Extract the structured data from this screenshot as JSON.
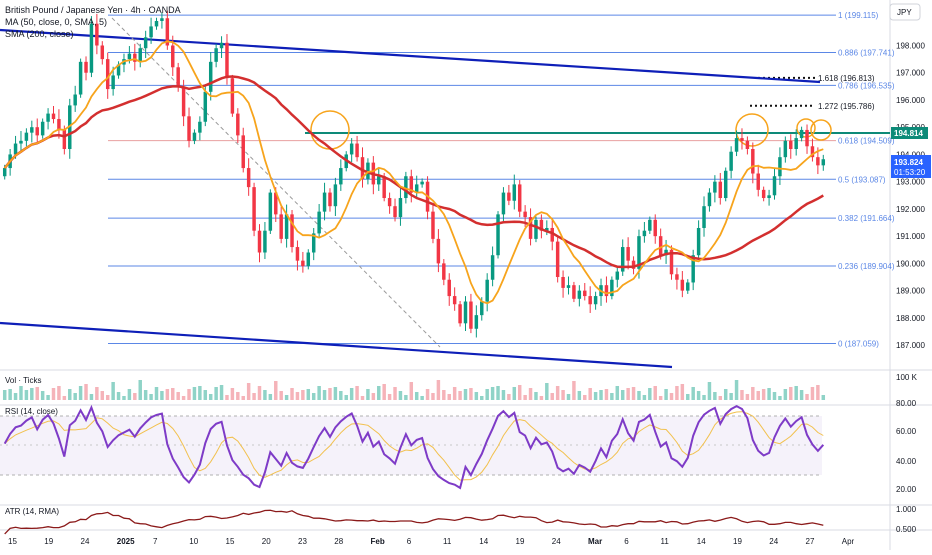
{
  "header": {
    "symbol": "British Pound / Japanese Yen · 4h · OANDA",
    "ma_label": "MA (50, close, 0, SMA, 5)",
    "sma_label": "SMA (200, close)",
    "currency": "JPY"
  },
  "price_badge": {
    "value": "193.824",
    "countdown": "01:53:20"
  },
  "level_badge": "194.814",
  "colors": {
    "up": "#089981",
    "down": "#f23645",
    "ma50": "#f7a41c",
    "sma200": "#d32f2f",
    "channel": "#0e1fb8",
    "fib": "#5b87e6",
    "resistance": "#0d8a78",
    "rsi": "#7e3bc7",
    "badge_blue": "#2962ff",
    "badge_teal": "#0d8a78"
  },
  "panes": {
    "volume": {
      "label": "Vol · Ticks",
      "scale": "100 K"
    },
    "rsi": {
      "label": "RSI (14, close)",
      "ticks": [
        "80.00",
        "60.00",
        "40.00",
        "20.00"
      ]
    },
    "atr": {
      "label": "ATR (14, RMA)",
      "ticks": [
        "1.000",
        "0.500"
      ]
    }
  },
  "chart_data": {
    "type": "candlestick",
    "price_axis": {
      "ylim": [
        186.6,
        199.45
      ],
      "ticks": [
        "198.000",
        "197.000",
        "196.000",
        "195.000",
        "194.000",
        "193.000",
        "192.000",
        "191.000",
        "190.000",
        "189.000",
        "188.000",
        "187.000"
      ]
    },
    "x_ticks": [
      "15",
      "19",
      "24",
      "2025",
      "7",
      "10",
      "15",
      "20",
      "23",
      "28",
      "Feb",
      "6",
      "11",
      "14",
      "19",
      "24",
      "Mar",
      "6",
      "11",
      "14",
      "19",
      "24",
      "27",
      "Apr"
    ],
    "fib_retracement": [
      {
        "ratio": "1",
        "price": 199.115,
        "label": "1 (199.115)"
      },
      {
        "ratio": "0.886",
        "price": 197.741,
        "label": "0.886 (197.741)"
      },
      {
        "ratio": "0.786",
        "price": 196.535,
        "label": "0.786 (196.535)"
      },
      {
        "ratio": "0.618",
        "price": 194.509,
        "label": "0.618 (194.509)"
      },
      {
        "ratio": "0.5",
        "price": 193.087,
        "label": "0.5 (193.087)"
      },
      {
        "ratio": "0.382",
        "price": 191.664,
        "label": "0.382 (191.664)"
      },
      {
        "ratio": "0.236",
        "price": 189.904,
        "label": "0.236 (189.904)"
      },
      {
        "ratio": "0",
        "price": 187.059,
        "label": "0 (187.059)"
      }
    ],
    "fib_extensions": [
      {
        "price": 196.813,
        "label": "1.618 (196.813)"
      },
      {
        "price": 195.786,
        "label": "1.272 (195.786)"
      }
    ],
    "resistance": 194.814,
    "closes": [
      193.5,
      194.0,
      194.4,
      194.5,
      194.8,
      195.0,
      194.7,
      195.2,
      195.5,
      195.3,
      194.9,
      194.2,
      195.8,
      196.2,
      197.4,
      197.0,
      198.8,
      198.0,
      197.5,
      196.4,
      196.9,
      197.3,
      197.5,
      197.7,
      197.4,
      197.9,
      198.3,
      198.7,
      198.9,
      199.0,
      198.0,
      197.2,
      196.5,
      195.4,
      194.5,
      194.8,
      195.2,
      196.3,
      197.4,
      197.9,
      198.1,
      196.8,
      195.5,
      194.7,
      193.5,
      192.8,
      191.2,
      190.4,
      191.2,
      192.6,
      191.8,
      190.9,
      191.8,
      190.6,
      190.1,
      189.9,
      190.4,
      191.1,
      191.9,
      192.6,
      192.1,
      192.9,
      193.5,
      194.0,
      194.4,
      193.9,
      193.1,
      193.7,
      192.9,
      193.2,
      192.4,
      192.1,
      191.7,
      192.4,
      193.2,
      192.6,
      192.9,
      193.0,
      191.9,
      190.9,
      190.0,
      189.4,
      188.8,
      188.5,
      187.8,
      188.6,
      187.6,
      188.1,
      188.6,
      189.4,
      190.3,
      191.8,
      192.6,
      192.3,
      192.9,
      191.9,
      191.7,
      190.9,
      191.6,
      191.2,
      191.3,
      190.8,
      189.5,
      189.1,
      189.2,
      188.7,
      189.0,
      188.8,
      188.5,
      188.8,
      189.2,
      188.8,
      189.4,
      189.7,
      190.6,
      190.1,
      189.8,
      191.0,
      191.2,
      191.6,
      191.0,
      190.3,
      190.5,
      189.6,
      189.4,
      189.0,
      189.3,
      190.3,
      191.3,
      192.1,
      192.6,
      193.0,
      192.4,
      193.4,
      194.1,
      194.6,
      194.5,
      194.2,
      193.3,
      192.7,
      192.4,
      192.5,
      193.2,
      193.9,
      194.5,
      194.2,
      194.6,
      194.9,
      194.3,
      193.9,
      193.6,
      193.824
    ]
  }
}
